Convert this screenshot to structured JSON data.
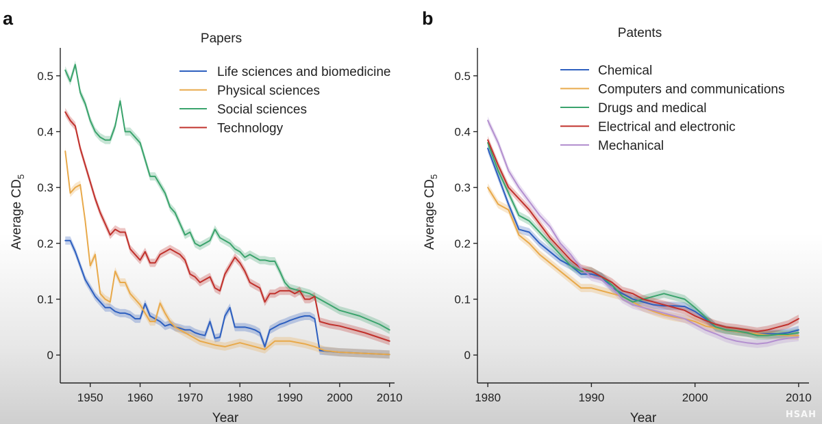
{
  "chart_data": [
    {
      "panel": "a",
      "type": "line",
      "title": "Papers",
      "xlabel": "Year",
      "ylabel": "Average CD",
      "ylabel_sub": "5",
      "xlim": [
        1944,
        2011
      ],
      "ylim": [
        -0.05,
        0.55
      ],
      "xticks": [
        1950,
        1960,
        1970,
        1980,
        1990,
        2000,
        2010
      ],
      "yticks": [
        0,
        0.1,
        0.2,
        0.3,
        0.4,
        0.5
      ],
      "ytick_labels": [
        "0",
        "0.1",
        "0.2",
        "0.3",
        "0.4",
        "0.5"
      ],
      "legend_position": "top-right",
      "series": [
        {
          "name": "Life sciences and biomedicine",
          "color": "#2d5fbf",
          "x": [
            1945,
            1946,
            1947,
            1948,
            1949,
            1950,
            1951,
            1952,
            1953,
            1954,
            1955,
            1956,
            1957,
            1958,
            1959,
            1960,
            1961,
            1962,
            1963,
            1964,
            1965,
            1966,
            1967,
            1968,
            1969,
            1970,
            1971,
            1972,
            1973,
            1974,
            1975,
            1976,
            1977,
            1978,
            1979,
            1980,
            1981,
            1982,
            1983,
            1984,
            1985,
            1986,
            1987,
            1988,
            1989,
            1990,
            1991,
            1992,
            1993,
            1994,
            1995,
            1996,
            2000,
            2005,
            2010
          ],
          "y": [
            0.205,
            0.205,
            0.185,
            0.16,
            0.135,
            0.12,
            0.105,
            0.095,
            0.085,
            0.085,
            0.078,
            0.075,
            0.075,
            0.072,
            0.065,
            0.065,
            0.092,
            0.07,
            0.065,
            0.06,
            0.052,
            0.055,
            0.05,
            0.048,
            0.045,
            0.045,
            0.04,
            0.037,
            0.035,
            0.06,
            0.03,
            0.032,
            0.07,
            0.085,
            0.05,
            0.05,
            0.05,
            0.048,
            0.045,
            0.04,
            0.015,
            0.045,
            0.05,
            0.055,
            0.058,
            0.062,
            0.065,
            0.068,
            0.07,
            0.07,
            0.065,
            0.008,
            0.005,
            0.003,
            0.001
          ]
        },
        {
          "name": "Physical sciences",
          "color": "#e8a94a",
          "x": [
            1945,
            1946,
            1947,
            1948,
            1949,
            1950,
            1951,
            1952,
            1953,
            1954,
            1955,
            1956,
            1957,
            1958,
            1959,
            1960,
            1961,
            1962,
            1963,
            1964,
            1965,
            1966,
            1967,
            1968,
            1969,
            1970,
            1972,
            1975,
            1977,
            1980,
            1983,
            1985,
            1987,
            1990,
            1993,
            1995,
            1997,
            2000,
            2005,
            2010
          ],
          "y": [
            0.365,
            0.29,
            0.3,
            0.305,
            0.24,
            0.16,
            0.18,
            0.11,
            0.1,
            0.095,
            0.15,
            0.13,
            0.13,
            0.11,
            0.1,
            0.09,
            0.075,
            0.06,
            0.06,
            0.093,
            0.075,
            0.06,
            0.05,
            0.045,
            0.04,
            0.035,
            0.025,
            0.018,
            0.015,
            0.022,
            0.015,
            0.01,
            0.025,
            0.025,
            0.02,
            0.015,
            0.008,
            0.005,
            0.003,
            0.001
          ]
        },
        {
          "name": "Social sciences",
          "color": "#3aa36c",
          "x": [
            1945,
            1946,
            1947,
            1948,
            1949,
            1950,
            1951,
            1952,
            1953,
            1954,
            1955,
            1956,
            1957,
            1958,
            1959,
            1960,
            1961,
            1962,
            1963,
            1964,
            1965,
            1966,
            1967,
            1968,
            1969,
            1970,
            1971,
            1972,
            1973,
            1974,
            1975,
            1976,
            1977,
            1978,
            1979,
            1980,
            1981,
            1982,
            1983,
            1984,
            1985,
            1986,
            1987,
            1988,
            1989,
            1990,
            1992,
            1994,
            1996,
            1998,
            2000,
            2004,
            2008,
            2010
          ],
          "y": [
            0.51,
            0.49,
            0.52,
            0.47,
            0.45,
            0.42,
            0.4,
            0.39,
            0.385,
            0.385,
            0.41,
            0.455,
            0.4,
            0.4,
            0.39,
            0.38,
            0.35,
            0.32,
            0.32,
            0.305,
            0.29,
            0.265,
            0.255,
            0.235,
            0.215,
            0.22,
            0.2,
            0.195,
            0.2,
            0.205,
            0.225,
            0.21,
            0.205,
            0.2,
            0.19,
            0.185,
            0.175,
            0.18,
            0.175,
            0.17,
            0.17,
            0.168,
            0.168,
            0.15,
            0.13,
            0.12,
            0.115,
            0.11,
            0.1,
            0.09,
            0.08,
            0.07,
            0.055,
            0.045
          ]
        },
        {
          "name": "Technology",
          "color": "#c0302b",
          "x": [
            1945,
            1946,
            1947,
            1948,
            1949,
            1950,
            1951,
            1952,
            1953,
            1954,
            1955,
            1956,
            1957,
            1958,
            1959,
            1960,
            1961,
            1962,
            1963,
            1964,
            1965,
            1966,
            1967,
            1968,
            1969,
            1970,
            1971,
            1972,
            1973,
            1974,
            1975,
            1976,
            1977,
            1978,
            1979,
            1980,
            1981,
            1982,
            1983,
            1984,
            1985,
            1986,
            1987,
            1988,
            1989,
            1990,
            1991,
            1992,
            1993,
            1994,
            1995,
            1996,
            1998,
            2000,
            2005,
            2010
          ],
          "y": [
            0.435,
            0.42,
            0.41,
            0.37,
            0.34,
            0.31,
            0.28,
            0.255,
            0.235,
            0.215,
            0.225,
            0.22,
            0.22,
            0.19,
            0.18,
            0.17,
            0.185,
            0.165,
            0.165,
            0.18,
            0.185,
            0.19,
            0.185,
            0.18,
            0.17,
            0.145,
            0.14,
            0.13,
            0.135,
            0.14,
            0.12,
            0.115,
            0.145,
            0.16,
            0.175,
            0.165,
            0.15,
            0.13,
            0.125,
            0.12,
            0.095,
            0.11,
            0.11,
            0.115,
            0.115,
            0.115,
            0.11,
            0.115,
            0.1,
            0.1,
            0.105,
            0.06,
            0.055,
            0.052,
            0.04,
            0.025
          ]
        }
      ]
    },
    {
      "panel": "b",
      "type": "line",
      "title": "Patents",
      "xlabel": "Year",
      "ylabel": "Average CD",
      "ylabel_sub": "5",
      "xlim": [
        1979,
        2011
      ],
      "ylim": [
        -0.05,
        0.55
      ],
      "xticks": [
        1980,
        1990,
        2000,
        2010
      ],
      "yticks": [
        0,
        0.1,
        0.2,
        0.3,
        0.4,
        0.5
      ],
      "ytick_labels": [
        "0",
        "0.1",
        "0.2",
        "0.3",
        "0.4",
        "0.5"
      ],
      "legend_position": "top-right",
      "series": [
        {
          "name": "Chemical",
          "color": "#2d5fbf",
          "x": [
            1980,
            1981,
            1982,
            1983,
            1984,
            1985,
            1986,
            1987,
            1988,
            1989,
            1990,
            1991,
            1992,
            1993,
            1994,
            1995,
            1996,
            1997,
            1998,
            1999,
            2000,
            2001,
            2002,
            2003,
            2004,
            2005,
            2006,
            2007,
            2008,
            2009,
            2010
          ],
          "y": [
            0.37,
            0.32,
            0.27,
            0.225,
            0.22,
            0.2,
            0.185,
            0.17,
            0.16,
            0.145,
            0.145,
            0.14,
            0.12,
            0.11,
            0.1,
            0.095,
            0.09,
            0.088,
            0.088,
            0.087,
            0.078,
            0.065,
            0.05,
            0.045,
            0.042,
            0.04,
            0.038,
            0.038,
            0.038,
            0.04,
            0.045
          ]
        },
        {
          "name": "Computers and communications",
          "color": "#e8a94a",
          "x": [
            1980,
            1981,
            1982,
            1983,
            1984,
            1985,
            1986,
            1987,
            1988,
            1989,
            1990,
            1991,
            1992,
            1993,
            1994,
            1995,
            1996,
            1997,
            1998,
            1999,
            2000,
            2001,
            2002,
            2003,
            2004,
            2005,
            2006,
            2007,
            2008,
            2009,
            2010
          ],
          "y": [
            0.3,
            0.27,
            0.26,
            0.215,
            0.2,
            0.18,
            0.165,
            0.15,
            0.135,
            0.12,
            0.12,
            0.115,
            0.11,
            0.105,
            0.095,
            0.085,
            0.078,
            0.072,
            0.068,
            0.065,
            0.06,
            0.052,
            0.048,
            0.045,
            0.042,
            0.04,
            0.038,
            0.036,
            0.036,
            0.035,
            0.035
          ]
        },
        {
          "name": "Drugs and medical",
          "color": "#3aa36c",
          "x": [
            1980,
            1981,
            1982,
            1983,
            1984,
            1985,
            1986,
            1987,
            1988,
            1989,
            1990,
            1991,
            1992,
            1993,
            1994,
            1995,
            1996,
            1997,
            1998,
            1999,
            2000,
            2001,
            2002,
            2003,
            2004,
            2005,
            2006,
            2007,
            2008,
            2009,
            2010
          ],
          "y": [
            0.38,
            0.33,
            0.29,
            0.25,
            0.24,
            0.22,
            0.2,
            0.18,
            0.16,
            0.15,
            0.15,
            0.14,
            0.125,
            0.105,
            0.095,
            0.1,
            0.105,
            0.11,
            0.105,
            0.1,
            0.085,
            0.068,
            0.05,
            0.045,
            0.043,
            0.04,
            0.035,
            0.035,
            0.037,
            0.037,
            0.04
          ]
        },
        {
          "name": "Electrical and electronic",
          "color": "#c0302b",
          "x": [
            1980,
            1981,
            1982,
            1983,
            1984,
            1985,
            1986,
            1987,
            1988,
            1989,
            1990,
            1991,
            1992,
            1993,
            1994,
            1995,
            1996,
            1997,
            1998,
            1999,
            2000,
            2001,
            2002,
            2003,
            2004,
            2005,
            2006,
            2007,
            2008,
            2009,
            2010
          ],
          "y": [
            0.385,
            0.34,
            0.3,
            0.28,
            0.26,
            0.235,
            0.21,
            0.19,
            0.17,
            0.155,
            0.15,
            0.14,
            0.13,
            0.115,
            0.11,
            0.1,
            0.095,
            0.09,
            0.085,
            0.08,
            0.07,
            0.062,
            0.055,
            0.05,
            0.048,
            0.045,
            0.042,
            0.045,
            0.05,
            0.055,
            0.065
          ]
        },
        {
          "name": "Mechanical",
          "color": "#b38fcf",
          "x": [
            1980,
            1981,
            1982,
            1983,
            1984,
            1985,
            1986,
            1987,
            1988,
            1989,
            1990,
            1991,
            1992,
            1993,
            1994,
            1995,
            1996,
            1997,
            1998,
            1999,
            2000,
            2001,
            2002,
            2003,
            2004,
            2005,
            2006,
            2007,
            2008,
            2009,
            2010
          ],
          "y": [
            0.42,
            0.38,
            0.33,
            0.3,
            0.275,
            0.25,
            0.23,
            0.2,
            0.18,
            0.155,
            0.14,
            0.135,
            0.12,
            0.1,
            0.09,
            0.085,
            0.08,
            0.075,
            0.07,
            0.065,
            0.055,
            0.045,
            0.038,
            0.03,
            0.025,
            0.022,
            0.02,
            0.022,
            0.027,
            0.03,
            0.032
          ]
        }
      ]
    }
  ],
  "panel_labels": [
    "a",
    "b"
  ],
  "watermark_text": "HSAH"
}
